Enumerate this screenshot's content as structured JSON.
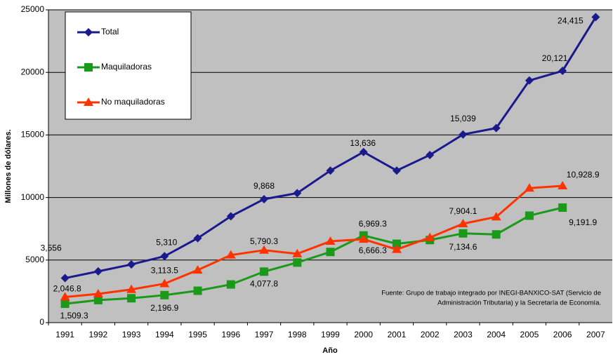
{
  "chart_data": {
    "type": "line",
    "xlabel": "Año",
    "ylabel": "Millones de dólares.",
    "categories": [
      "1991",
      "1992",
      "1993",
      "1994",
      "1995",
      "1996",
      "1997",
      "1998",
      "1999",
      "2000",
      "2001",
      "2002",
      "2003",
      "2004",
      "2005",
      "2006",
      "2007"
    ],
    "series": [
      {
        "name": "Total",
        "color": "#1a1a8c",
        "marker": "diamond",
        "values": [
          3556,
          4100,
          4650,
          5310,
          6750,
          8500,
          9868,
          10350,
          12150,
          13636,
          12150,
          13400,
          15039,
          15550,
          19350,
          20121,
          24415
        ],
        "value_labels": [
          "3,556",
          null,
          null,
          "5,310",
          null,
          null,
          "9,868",
          null,
          null,
          "13,636",
          null,
          null,
          "15,039",
          null,
          null,
          "20,121",
          "24,415"
        ]
      },
      {
        "name": "Maquiladoras",
        "color": "#1a9a1a",
        "marker": "square",
        "values": [
          1509.3,
          1800,
          1950,
          2196.9,
          2550,
          3050,
          4077.8,
          4800,
          5650,
          6969.3,
          6300,
          6600,
          7134.6,
          7050,
          8550,
          9191.9,
          null
        ],
        "value_labels": [
          "1,509.3",
          null,
          null,
          "2,196.9",
          null,
          null,
          "4,077.8",
          null,
          null,
          "6,969.3",
          null,
          null,
          "7,134.6",
          null,
          null,
          "9,191.9",
          null
        ]
      },
      {
        "name": "No maquiladoras",
        "color": "#ff3300",
        "marker": "triangle",
        "values": [
          2046.8,
          2300,
          2650,
          3113.5,
          4200,
          5400,
          5790.3,
          5500,
          6500,
          6666.3,
          5850,
          6800,
          7904.1,
          8450,
          10750,
          10928.9,
          null
        ],
        "value_labels": [
          "2,046.8",
          null,
          null,
          "3,113.5",
          null,
          null,
          "5,790.3",
          null,
          null,
          "6,666.3",
          null,
          null,
          "7,904.1",
          null,
          null,
          "10,928.9",
          null
        ]
      }
    ],
    "ylim": [
      0,
      25000
    ],
    "yticks": [
      0,
      5000,
      10000,
      15000,
      20000,
      25000
    ],
    "grid": true,
    "annotations": [
      "Fuente: Grupo de trabajo integrado por INEGI-BANXICO-SAT (Servicio de",
      "Administración Tributaria) y la Secretaría de Economía."
    ]
  }
}
